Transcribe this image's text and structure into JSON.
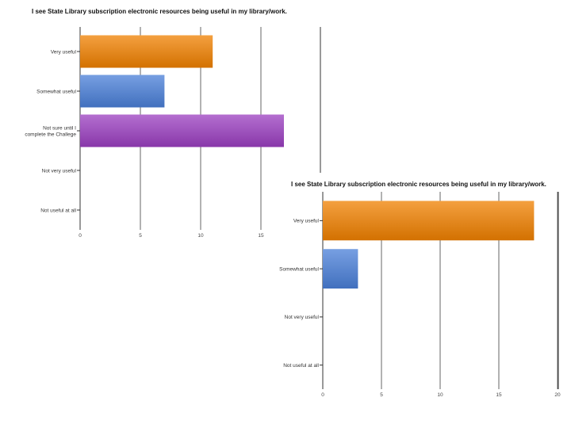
{
  "chart_data": [
    {
      "type": "bar",
      "orientation": "horizontal",
      "title": "I see State Library subscription electronic resources being useful in my library/work.",
      "categories": [
        [
          "Very useful"
        ],
        [
          "Somewhat useful"
        ],
        [
          "Not sure until I",
          "complete the Challege"
        ],
        [
          "Not very useful"
        ],
        [
          "Not useful at all"
        ]
      ],
      "values": [
        11,
        7,
        17,
        0,
        0
      ],
      "colors": [
        "#f08000",
        "#4a7fd8",
        "#9b3fc0",
        "#cccccc",
        "#cccccc"
      ],
      "xlim": [
        0,
        20
      ],
      "xticks": [
        0,
        5,
        10,
        15
      ],
      "grid": true
    },
    {
      "type": "bar",
      "orientation": "horizontal",
      "title": "I see State Library subscription electronic resources being useful in my library/work.",
      "categories": [
        [
          "Very useful"
        ],
        [
          "Somewhat useful"
        ],
        [
          "Not very useful"
        ],
        [
          "Not useful at all"
        ]
      ],
      "values": [
        18,
        3,
        0,
        0
      ],
      "colors": [
        "#f08000",
        "#4a7fd8",
        "#cccccc",
        "#cccccc"
      ],
      "xlim": [
        0,
        20
      ],
      "xticks": [
        0,
        5,
        10,
        15,
        20
      ],
      "grid": true
    }
  ]
}
